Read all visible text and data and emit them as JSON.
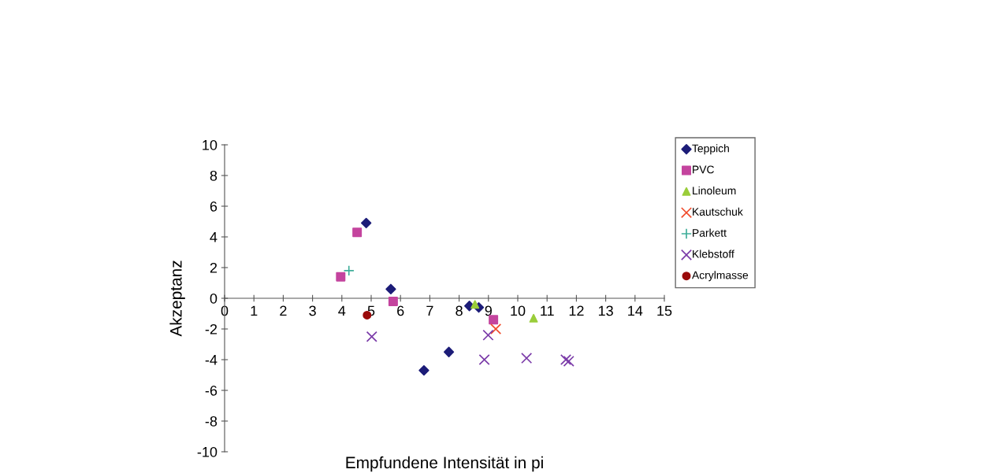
{
  "chart_data": {
    "type": "scatter",
    "xlabel": "Empfundene Intensität in pi",
    "ylabel": "Akzeptanz",
    "xlim": [
      0,
      15
    ],
    "xticks": [
      0,
      1,
      2,
      3,
      4,
      5,
      6,
      7,
      8,
      9,
      10,
      11,
      12,
      13,
      14,
      15
    ],
    "ylim": [
      -10,
      10
    ],
    "yticks": [
      -10,
      -8,
      -6,
      -4,
      -2,
      0,
      2,
      4,
      6,
      8,
      10
    ],
    "grid": false,
    "legend": "top right",
    "series": [
      {
        "name": "Teppich",
        "color": "#1c1c78",
        "marker": "diamond",
        "x": [
          4.83,
          5.67,
          6.8,
          7.65,
          8.35,
          8.67
        ],
        "values": [
          4.9,
          0.6,
          -4.7,
          -3.5,
          -0.5,
          -0.6
        ]
      },
      {
        "name": "PVC",
        "color": "#c4449e",
        "marker": "square",
        "x": [
          3.96,
          4.52,
          5.75,
          9.17
        ],
        "values": [
          1.4,
          4.3,
          -0.2,
          -1.4
        ]
      },
      {
        "name": "Linoleum",
        "color": "#9acd3a",
        "marker": "triangle",
        "x": [
          8.54,
          10.54
        ],
        "values": [
          -0.4,
          -1.3
        ]
      },
      {
        "name": "Kautschuk",
        "color": "#f04a2a",
        "marker": "cross",
        "x": [
          9.25
        ],
        "values": [
          -2.0
        ]
      },
      {
        "name": "Parkett",
        "color": "#3fae9a",
        "marker": "plus",
        "x": [
          4.24
        ],
        "values": [
          1.8
        ]
      },
      {
        "name": "Klebstoff",
        "color": "#7a3aa8",
        "marker": "cross",
        "x": [
          5.02,
          8.86,
          8.99,
          10.3,
          11.64,
          11.74
        ],
        "values": [
          -2.5,
          -4.0,
          -2.4,
          -3.9,
          -4.0,
          -4.1
        ]
      },
      {
        "name": "Acrylmasse",
        "color": "#9a0a0a",
        "marker": "circle",
        "x": [
          4.86
        ],
        "values": [
          -1.1
        ]
      }
    ]
  }
}
